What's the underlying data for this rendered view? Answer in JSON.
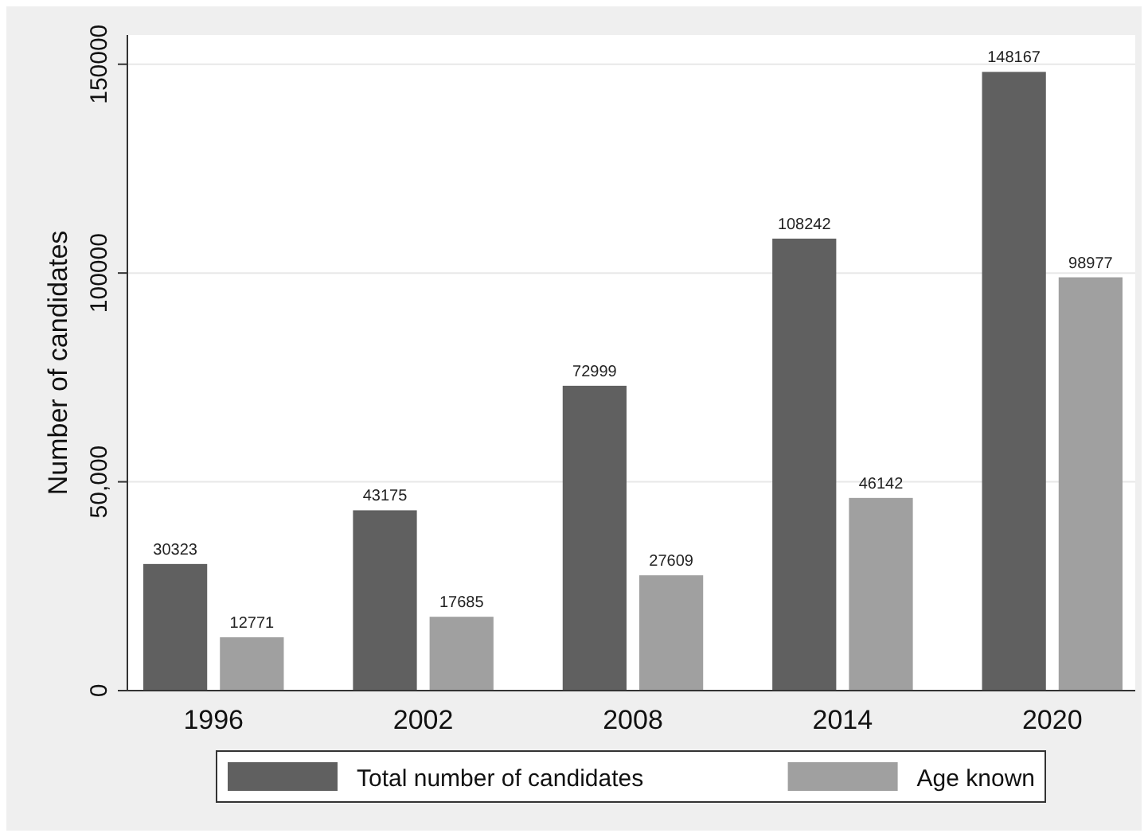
{
  "chart_data": {
    "type": "bar",
    "ylabel": "Number of candidates",
    "categories": [
      "1996",
      "2002",
      "2008",
      "2014",
      "2020"
    ],
    "series": [
      {
        "name": "Total number of candidates",
        "color": "#606060",
        "values": [
          30323,
          43175,
          72999,
          108242,
          148167
        ]
      },
      {
        "name": "Age known",
        "color": "#a0a0a0",
        "values": [
          12771,
          17685,
          27609,
          46142,
          98977
        ]
      }
    ],
    "ylim": [
      0,
      157000
    ],
    "yticks": [
      0,
      {
        "value": 50000,
        "label": "50,000"
      },
      100000,
      150000
    ],
    "grid": "y",
    "legend": "bottom",
    "data_labels": true
  }
}
